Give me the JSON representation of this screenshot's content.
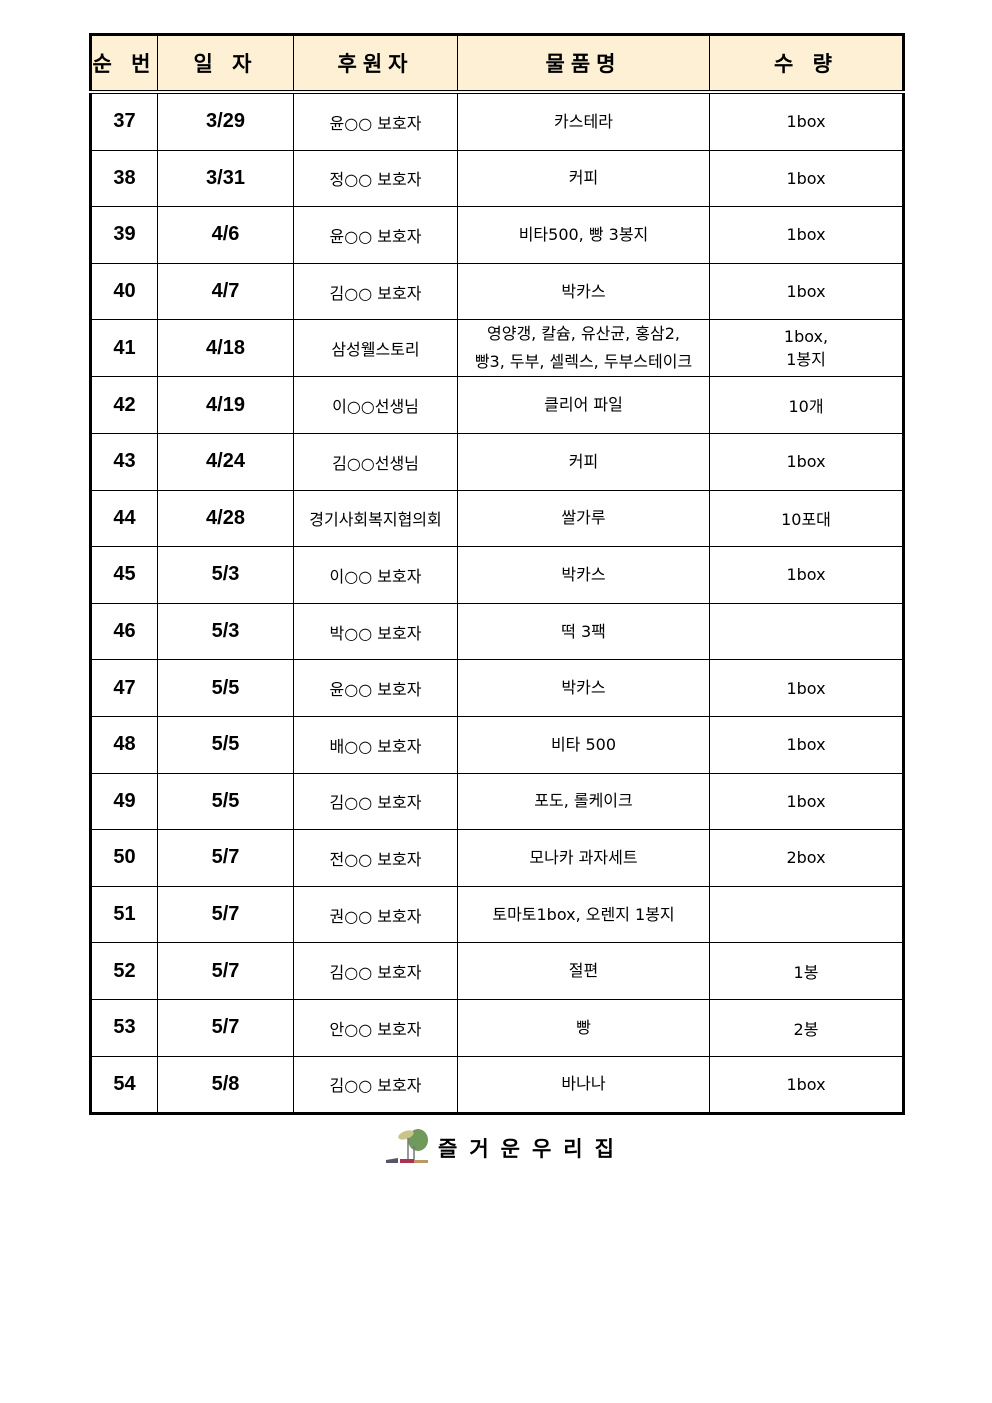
{
  "table": {
    "headers": [
      "순 번",
      "일 자",
      "후원자",
      "물품명",
      "수 량"
    ],
    "rows": [
      [
        "37",
        "3/29",
        "윤○○ 보호자",
        "카스테라",
        "1box"
      ],
      [
        "38",
        "3/31",
        "정○○ 보호자",
        "커피",
        "1box"
      ],
      [
        "39",
        "4/6",
        "윤○○ 보호자",
        "비타500, 빵 3봉지",
        "1box"
      ],
      [
        "40",
        "4/7",
        "김○○ 보호자",
        "박카스",
        "1box"
      ],
      [
        "41",
        "4/18",
        "삼성웰스토리",
        "영양갱, 칼슘, 유산균, 홍삼2,\n빵3, 두부, 셀렉스, 두부스테이크",
        "1box,\n1봉지"
      ],
      [
        "42",
        "4/19",
        "이○○선생님",
        "클리어 파일",
        "10개"
      ],
      [
        "43",
        "4/24",
        "김○○선생님",
        "커피",
        "1box"
      ],
      [
        "44",
        "4/28",
        "경기사회복지협의회",
        "쌀가루",
        "10포대"
      ],
      [
        "45",
        "5/3",
        "이○○ 보호자",
        "박카스",
        "1box"
      ],
      [
        "46",
        "5/3",
        "박○○ 보호자",
        "떡 3팩",
        ""
      ],
      [
        "47",
        "5/5",
        "윤○○ 보호자",
        "박카스",
        "1box"
      ],
      [
        "48",
        "5/5",
        "배○○ 보호자",
        "비타 500",
        "1box"
      ],
      [
        "49",
        "5/5",
        "김○○ 보호자",
        "포도, 롤케이크",
        "1box"
      ],
      [
        "50",
        "5/7",
        "전○○ 보호자",
        "모나카 과자세트",
        "2box"
      ],
      [
        "51",
        "5/7",
        "권○○ 보호자",
        "토마토1box, 오렌지 1봉지",
        ""
      ],
      [
        "52",
        "5/7",
        "김○○ 보호자",
        "절편",
        "1봉"
      ],
      [
        "53",
        "5/7",
        "안○○ 보호자",
        "빵",
        "2봉"
      ],
      [
        "54",
        "5/8",
        "김○○ 보호자",
        "바나나",
        "1box"
      ]
    ]
  },
  "footer": {
    "title": "즐거운우리집",
    "logo_icon": "plant-logo-icon"
  },
  "colors": {
    "header_bg": "#fdf0d5"
  }
}
